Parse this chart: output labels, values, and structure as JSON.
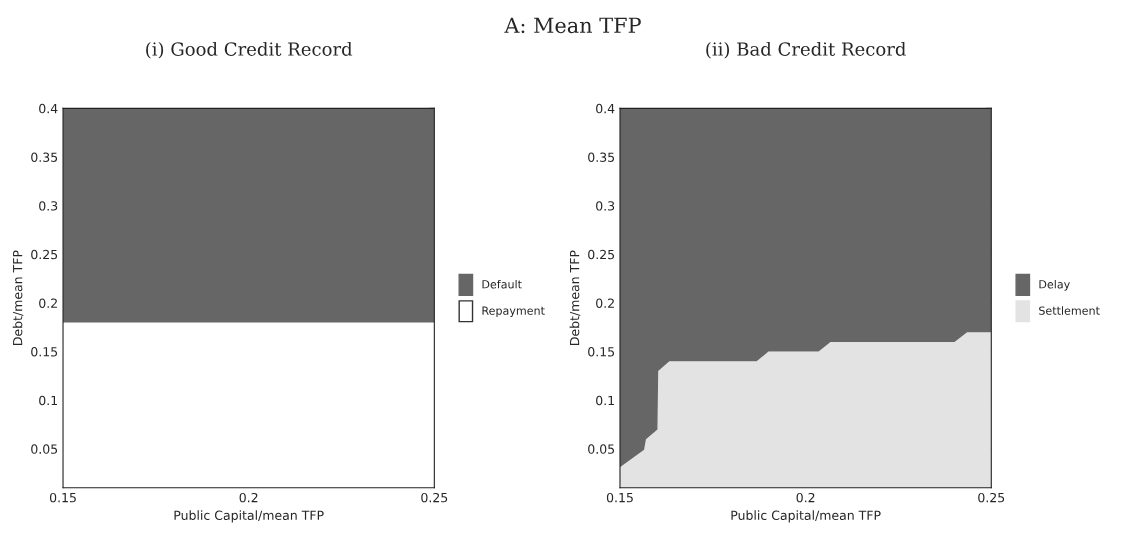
{
  "chart_data": [
    {
      "type": "area",
      "stacked": true,
      "title": "(i) Good Credit Record",
      "annotations": [
        "A: Mean TFP"
      ],
      "xlabel": "Public Capital/mean TFP",
      "ylabel": "Debt/mean TFP",
      "legend": "right",
      "grid": false,
      "x": [
        0.15,
        0.25
      ],
      "xlim": [
        0.15,
        0.25
      ],
      "xticks": [
        0.15,
        0.2,
        0.25
      ],
      "ylim": [
        0.01,
        0.4
      ],
      "yticks": [
        0.05,
        0.1,
        0.15,
        0.2,
        0.25,
        0.3,
        0.35,
        0.4
      ],
      "series": [
        {
          "name": "Repayment",
          "color": "#ffffff",
          "values": [
            0.18,
            0.18
          ]
        },
        {
          "name": "Default",
          "color": "#666666",
          "values": [
            0.22,
            0.22
          ]
        }
      ]
    },
    {
      "type": "area",
      "stacked": true,
      "title": "(ii) Bad Credit Record",
      "xlabel": "Public Capital/mean TFP",
      "ylabel": "Debt/mean TFP",
      "legend": "right",
      "grid": false,
      "x": [
        0.15,
        0.1565,
        0.157,
        0.1601,
        0.1603,
        0.1633,
        0.1868,
        0.19,
        0.2035,
        0.2067,
        0.2401,
        0.2435,
        0.25
      ],
      "xlim": [
        0.15,
        0.25
      ],
      "xticks": [
        0.15,
        0.2,
        0.25
      ],
      "ylim": [
        0.01,
        0.4
      ],
      "yticks": [
        0.05,
        0.1,
        0.15,
        0.2,
        0.25,
        0.3,
        0.35,
        0.4
      ],
      "series": [
        {
          "name": "Settlement",
          "color": "#e3e3e3",
          "values": [
            0.031,
            0.049,
            0.06,
            0.07,
            0.13,
            0.14,
            0.14,
            0.15,
            0.15,
            0.16,
            0.16,
            0.17,
            0.17
          ]
        },
        {
          "name": "Delay",
          "color": "#666666",
          "values": [
            0.369,
            0.351,
            0.34,
            0.33,
            0.27,
            0.26,
            0.26,
            0.25,
            0.25,
            0.24,
            0.24,
            0.23,
            0.23
          ]
        }
      ]
    }
  ]
}
